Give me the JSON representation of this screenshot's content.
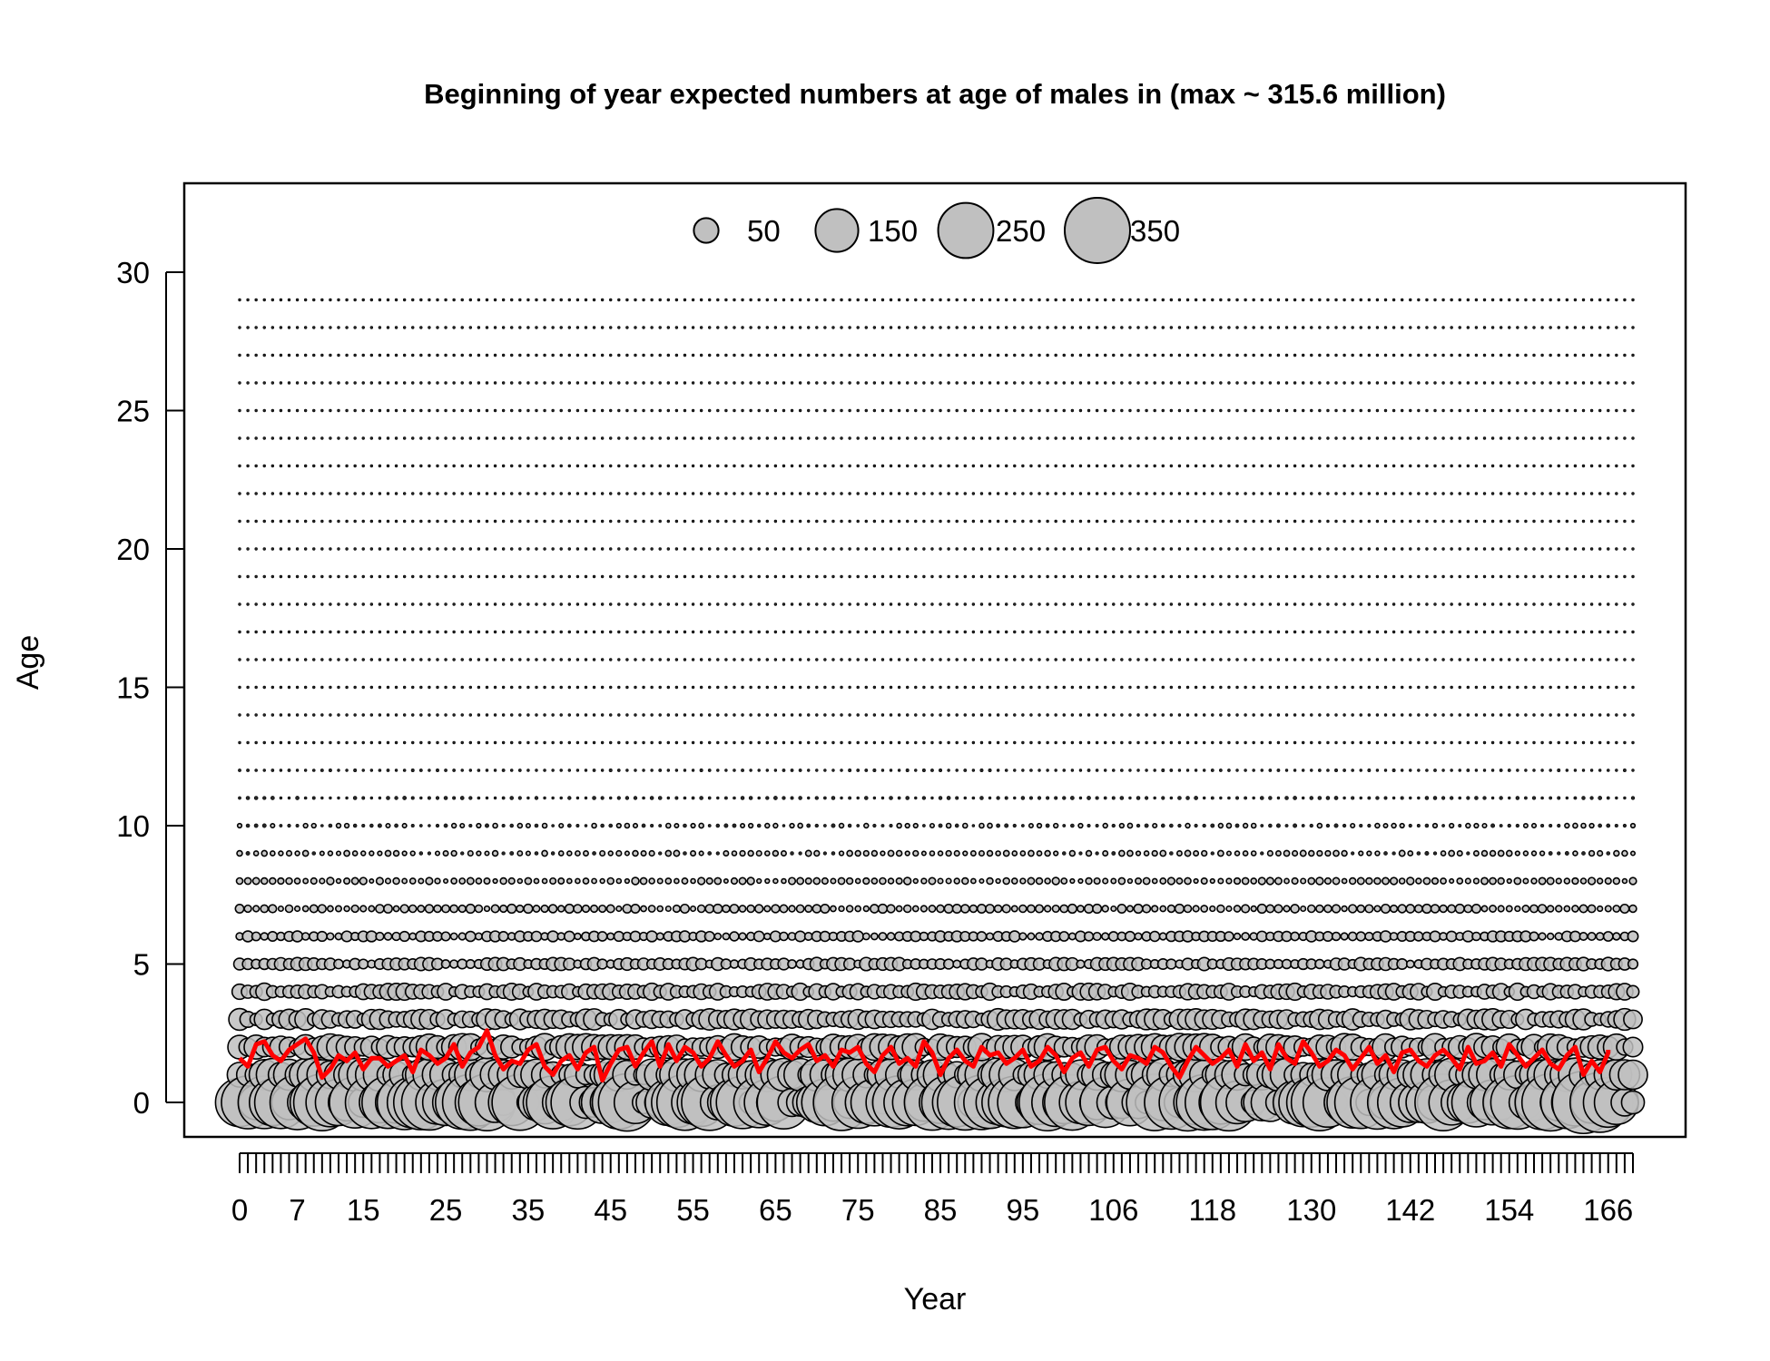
{
  "chart_data": {
    "type": "scatter",
    "title": "Beginning of year expected numbers at age of males in (max ~ 315.6 million)",
    "xlabel": "Year",
    "ylabel": "Age",
    "xlim": [
      0,
      169
    ],
    "ylim": [
      -1.2,
      33
    ],
    "x_tick_labels": [
      "0",
      "7",
      "15",
      "25",
      "35",
      "45",
      "55",
      "65",
      "75",
      "85",
      "95",
      "106",
      "118",
      "130",
      "142",
      "154",
      "166"
    ],
    "y_ticks": [
      0,
      5,
      10,
      15,
      20,
      25,
      30
    ],
    "years": {
      "first": 0,
      "last": 169
    },
    "ages": {
      "first": 0,
      "last": 29
    },
    "max_value_million": 315.6,
    "grid": false,
    "bubble_fill": "#c0c0c0",
    "bubble_stroke": "#000000",
    "legend": {
      "placement": "top-center",
      "values": [
        50,
        150,
        250,
        350
      ],
      "labels": [
        "50",
        "150",
        "250",
        "350"
      ]
    },
    "series": [
      {
        "name": "mean age",
        "color": "#ff0000",
        "values": [
          1.6,
          1.3,
          2.1,
          2.2,
          1.7,
          1.5,
          1.9,
          2.1,
          2.3,
          1.8,
          0.9,
          1.2,
          1.7,
          1.5,
          1.8,
          1.2,
          1.6,
          1.6,
          1.3,
          1.5,
          1.7,
          1.1,
          1.9,
          1.7,
          1.4,
          1.6,
          2.1,
          1.3,
          1.8,
          2.0,
          2.6,
          1.7,
          1.2,
          1.5,
          1.4,
          1.9,
          2.1,
          1.3,
          1.0,
          1.5,
          1.7,
          1.2,
          1.8,
          2.0,
          0.8,
          1.4,
          1.9,
          2.0,
          1.3,
          1.8,
          2.2,
          1.3,
          2.1,
          1.5,
          2.0,
          1.8,
          1.3,
          1.6,
          2.2,
          1.7,
          1.3,
          1.5,
          1.9,
          1.1,
          1.6,
          2.2,
          1.8,
          1.6,
          1.9,
          2.1,
          1.5,
          1.7,
          1.3,
          1.9,
          1.8,
          2.0,
          1.4,
          1.1,
          1.7,
          2.0,
          1.4,
          1.6,
          1.3,
          2.2,
          1.8,
          1.0,
          1.6,
          1.9,
          1.5,
          1.3,
          2.0,
          1.7,
          1.8,
          1.4,
          1.6,
          1.9,
          1.3,
          1.5,
          2.0,
          1.7,
          1.1,
          1.6,
          1.8,
          1.3,
          1.9,
          2.0,
          1.5,
          1.2,
          1.7,
          1.6,
          1.4,
          2.0,
          1.8,
          1.3,
          0.9,
          1.5,
          2.0,
          1.7,
          1.4,
          1.6,
          1.9,
          1.3,
          2.1,
          1.5,
          1.8,
          1.2,
          2.1,
          1.6,
          1.4,
          2.2,
          1.8,
          1.3,
          1.5,
          1.9,
          1.7,
          1.2,
          1.6,
          2.0,
          1.4,
          1.7,
          1.1,
          1.8,
          1.9,
          1.5,
          1.3,
          1.7,
          1.9,
          1.6,
          1.2,
          2.0,
          1.4,
          1.5,
          1.8,
          1.3,
          2.1,
          1.7,
          1.3,
          1.6,
          1.9,
          1.4,
          1.2,
          1.7,
          2.0,
          1.0,
          1.5,
          1.1,
          1.8,
          1.9
        ],
        "x": [
          3,
          4,
          5,
          6,
          7,
          8,
          9,
          10,
          11,
          12,
          13,
          14,
          15,
          16,
          17,
          18,
          19,
          20,
          21,
          22,
          23,
          24,
          25,
          26,
          27,
          28,
          29,
          30,
          31,
          32,
          33,
          34,
          35,
          36,
          37,
          38,
          39,
          40,
          41,
          42,
          43,
          44,
          45,
          46,
          47,
          48,
          49,
          50,
          51,
          52,
          53,
          54,
          55,
          56,
          57,
          58,
          59,
          60,
          61,
          62,
          63,
          64,
          65,
          66,
          67,
          68,
          69,
          70,
          71,
          72,
          73,
          74,
          75,
          76,
          77,
          78,
          79,
          80,
          81,
          82,
          83,
          84,
          85,
          86,
          87,
          88,
          89,
          90,
          91,
          92,
          93,
          94,
          95,
          96,
          97,
          98,
          99,
          100,
          101,
          102,
          103,
          104,
          105,
          106,
          107,
          108,
          109,
          110,
          111,
          112,
          113,
          114,
          115,
          116,
          117,
          118,
          119,
          120,
          121,
          122,
          123,
          124,
          125,
          126,
          127,
          128,
          129,
          130,
          131,
          132,
          133,
          134,
          135,
          136,
          137,
          138,
          139,
          140,
          141,
          142,
          143,
          144,
          145,
          146,
          147,
          148,
          149,
          150,
          151,
          152,
          153,
          154,
          155,
          156,
          157,
          158,
          159,
          160,
          161,
          162,
          163,
          164,
          165,
          166,
          167,
          168,
          169,
          169
        ]
      }
    ]
  }
}
